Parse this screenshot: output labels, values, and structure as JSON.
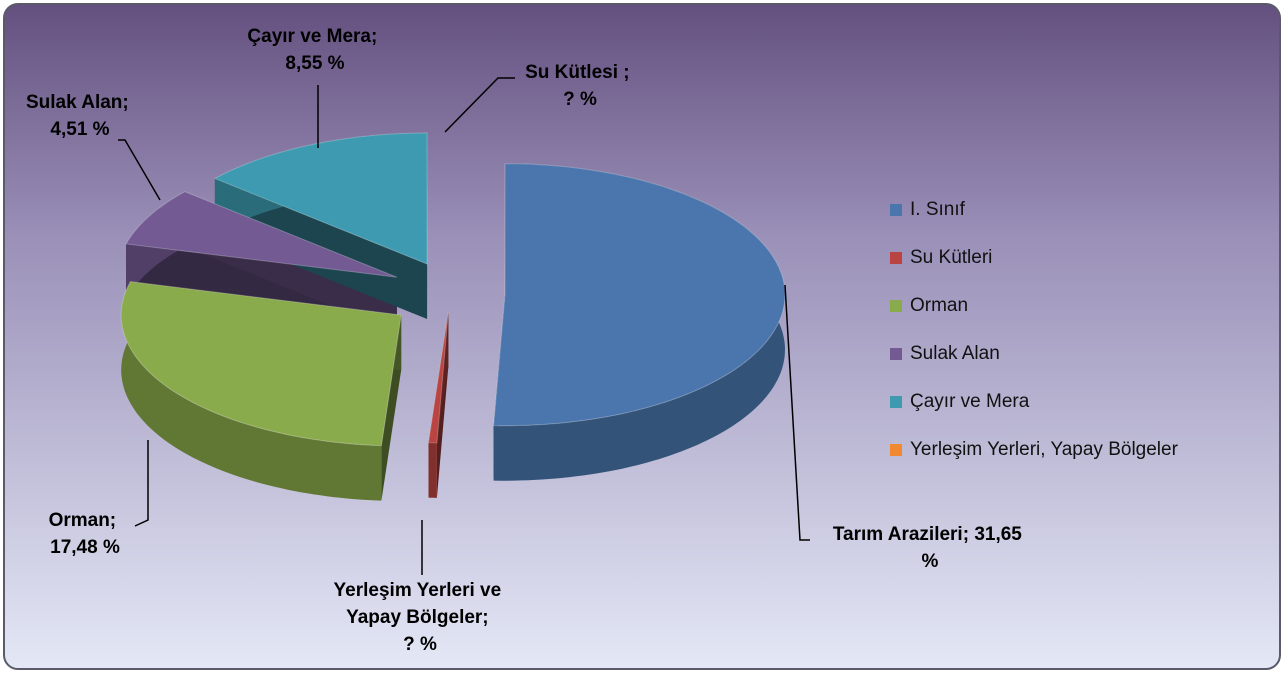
{
  "chart_data": {
    "type": "pie",
    "categories": [
      "I. Sınıf",
      "Su Kütleri",
      "Orman",
      "Sulak Alan",
      "Çayır ve Mera",
      "Yerleşim Yerleri, Yapay Bölgeler"
    ],
    "values": [
      31.65,
      0.3,
      17.48,
      4.51,
      8.55,
      0
    ],
    "value_labels": [
      "Tarım Arazileri; 31,65 %",
      "Yerleşim Yerleri ve Yapay Bölgeler; ? %",
      "Orman; 17,48 %",
      "Sulak Alan; 4,51 %",
      "Çayır ve Mera; 8,55 %",
      "Su Kütlesi ; ? %"
    ],
    "colors": [
      "#4a76ad",
      "#b94441",
      "#8aab4c",
      "#735a93",
      "#3e9ab0",
      "#f0892f"
    ],
    "legend": "right"
  }
}
